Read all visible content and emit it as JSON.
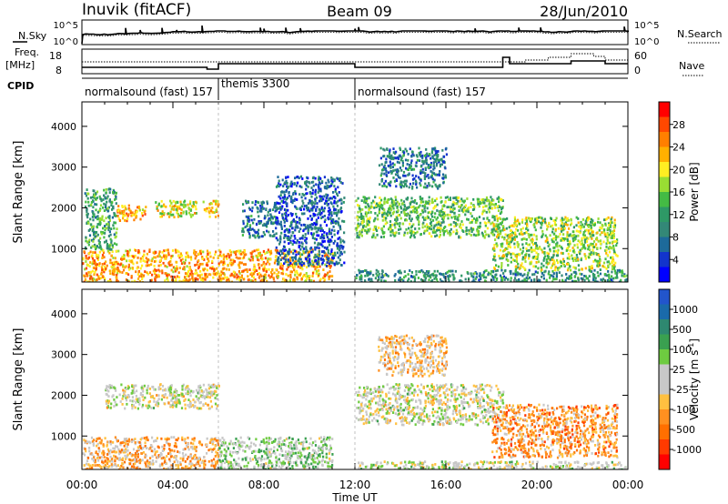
{
  "header": {
    "station": "Inuvik (fitACF)",
    "beam": "Beam 09",
    "date": "28/Jun/2010"
  },
  "strip_labels": {
    "nsky": "N.Sky",
    "nsearch": "N.Search",
    "freq_line1": "Freq.",
    "freq_line2": "[MHz]",
    "nave": "Nave",
    "cpid": "CPID"
  },
  "noise_axis": {
    "left_ticks": [
      "10^5",
      "10^0"
    ],
    "right_ticks": [
      "10^5",
      "10^0"
    ]
  },
  "freq_axis": {
    "left_ticks": [
      "18",
      "8"
    ],
    "right_ticks": [
      "60",
      "0"
    ]
  },
  "cpid_segments": [
    {
      "label": "normalsound (fast) 157",
      "start_hour": 0,
      "end_hour": 6
    },
    {
      "label": "themis 3300",
      "start_hour": 6,
      "end_hour": 12
    },
    {
      "label": "normalsound (fast) 157",
      "start_hour": 12,
      "end_hour": 24
    }
  ],
  "colorbars": {
    "power": {
      "label": "Power [dB]",
      "ticks": [
        "28",
        "24",
        "20",
        "16",
        "12",
        "8",
        "4"
      ],
      "colors": [
        "#ff0000",
        "#ff4800",
        "#ff7f00",
        "#ffb000",
        "#ffee22",
        "#99dd33",
        "#44bb44",
        "#2e9966",
        "#338877",
        "#1d6a9a",
        "#1234cc",
        "#0000ff"
      ]
    },
    "velocity": {
      "label_main": "Velocity [m s",
      "label_sup": "-1",
      "label_end": "]",
      "ticks": [
        "1000",
        "500",
        "100",
        "25",
        "-25",
        "-100",
        "-500",
        "-1000"
      ],
      "colors": [
        "#2255cc",
        "#1a6aaa",
        "#2e8870",
        "#3aa050",
        "#6ecb40",
        "#c8c8c8",
        "#c8c8c8",
        "#ffc040",
        "#ff9020",
        "#ff6f00",
        "#ff3a00",
        "#ff0000"
      ]
    }
  },
  "chart_data": [
    {
      "type": "heatmap",
      "panel": "power",
      "ylabel": "Slant Range [km]",
      "xlabel": "Time UT",
      "x_range_hours": [
        0,
        24
      ],
      "ylim": [
        180,
        4600
      ],
      "yticks": [
        1000,
        2000,
        3000,
        4000
      ],
      "xtick_labels": [
        "00:00",
        "04:00",
        "08:00",
        "12:00",
        "16:00",
        "20:00",
        "00:00"
      ],
      "colorbar_range_db": [
        0,
        30
      ],
      "echo_regions": [
        {
          "t0": 0.0,
          "t1": 6.0,
          "r0": 200,
          "r1": 1000,
          "db": 22
        },
        {
          "t0": 0.1,
          "t1": 1.5,
          "r0": 1000,
          "r1": 2500,
          "db": 12
        },
        {
          "t0": 1.5,
          "t1": 2.8,
          "r0": 1700,
          "r1": 2100,
          "db": 22
        },
        {
          "t0": 3.2,
          "t1": 5.0,
          "r0": 1800,
          "r1": 2200,
          "db": 18
        },
        {
          "t0": 5.3,
          "t1": 6.0,
          "r0": 1800,
          "r1": 2200,
          "db": 20
        },
        {
          "t0": 6.0,
          "t1": 11.0,
          "r0": 200,
          "r1": 1000,
          "db": 22
        },
        {
          "t0": 7.0,
          "t1": 8.5,
          "r0": 1300,
          "r1": 2200,
          "db": 8
        },
        {
          "t0": 8.5,
          "t1": 11.5,
          "r0": 600,
          "r1": 2800,
          "db": 6
        },
        {
          "t0": 12.0,
          "t1": 18.5,
          "r0": 1300,
          "r1": 2300,
          "db": 14
        },
        {
          "t0": 12.0,
          "t1": 24.0,
          "r0": 180,
          "r1": 500,
          "db": 10
        },
        {
          "t0": 18.0,
          "t1": 23.5,
          "r0": 500,
          "r1": 1800,
          "db": 16
        },
        {
          "t0": 13.0,
          "t1": 16.0,
          "r0": 2500,
          "r1": 3500,
          "db": 8
        }
      ]
    },
    {
      "type": "heatmap",
      "panel": "velocity",
      "ylabel": "Slant Range [km]",
      "xlabel": "Time UT",
      "x_range_hours": [
        0,
        24
      ],
      "ylim": [
        180,
        4600
      ],
      "yticks": [
        1000,
        2000,
        3000,
        4000
      ],
      "xtick_labels": [
        "00:00",
        "04:00",
        "08:00",
        "12:00",
        "16:00",
        "20:00",
        "00:00"
      ],
      "colorbar_range_ms": [
        -1000,
        1000
      ],
      "echo_regions": [
        {
          "t0": 0.0,
          "t1": 6.0,
          "r0": 200,
          "r1": 1000,
          "v": -300
        },
        {
          "t0": 1.0,
          "t1": 6.0,
          "r0": 1700,
          "r1": 2300,
          "v": 0
        },
        {
          "t0": 6.0,
          "t1": 11.0,
          "r0": 200,
          "r1": 1000,
          "v": 150
        },
        {
          "t0": 12.0,
          "t1": 18.5,
          "r0": 1300,
          "r1": 2300,
          "v": 0
        },
        {
          "t0": 12.0,
          "t1": 24.0,
          "r0": 180,
          "r1": 400,
          "v": 30
        },
        {
          "t0": 18.0,
          "t1": 23.5,
          "r0": 500,
          "r1": 1800,
          "v": -400
        },
        {
          "t0": 13.0,
          "t1": 16.0,
          "r0": 2500,
          "r1": 3500,
          "v": -200
        }
      ]
    }
  ]
}
